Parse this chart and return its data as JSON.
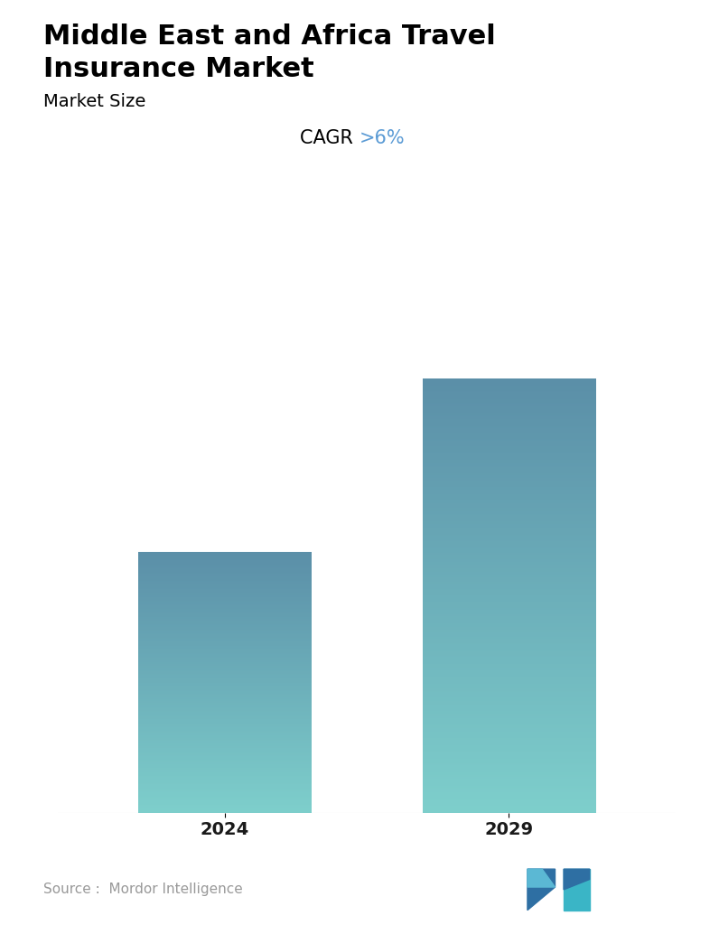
{
  "title_line1": "Middle East and Africa Travel",
  "title_line2": "Insurance Market",
  "subtitle": "Market Size",
  "cagr_label": "CAGR ",
  "cagr_value": ">6%",
  "categories": [
    "2024",
    "2029"
  ],
  "values": [
    0.6,
    1.0
  ],
  "bar_color_top": "#5b8fa8",
  "bar_color_bottom": "#7ecfcc",
  "background_color": "#ffffff",
  "source_text": "Source :  Mordor Intelligence",
  "title_fontsize": 22,
  "subtitle_fontsize": 14,
  "cagr_fontsize": 15,
  "xlabel_fontsize": 14,
  "ylim": [
    0,
    1.12
  ],
  "bar_width": 0.28,
  "bar_positions": [
    0.27,
    0.73
  ]
}
